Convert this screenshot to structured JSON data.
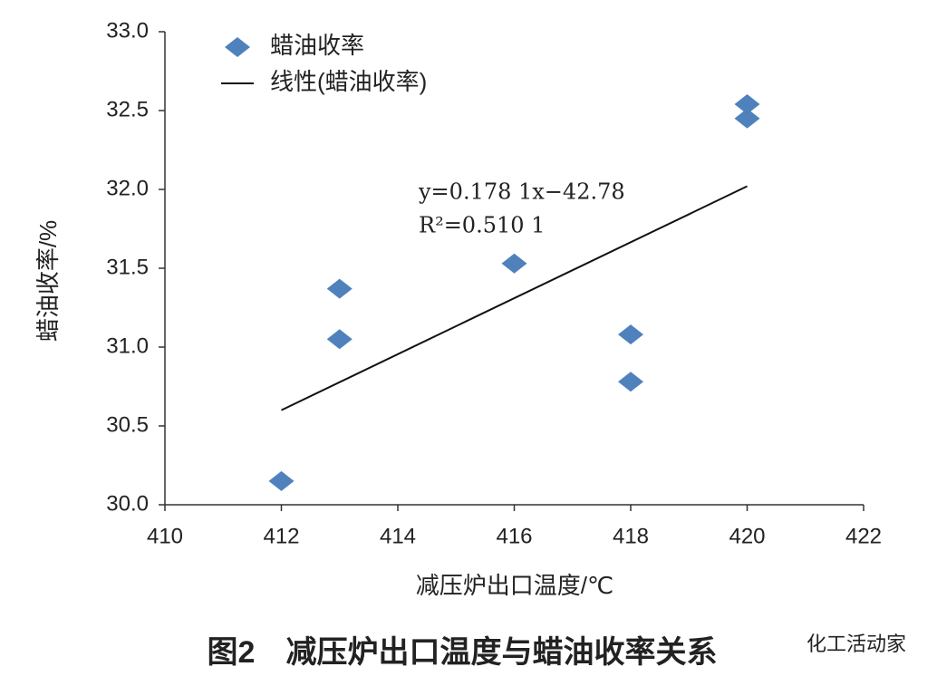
{
  "chart_data": {
    "type": "scatter",
    "caption": "图2　减压炉出口温度与蜡油收率关系",
    "xlabel": "减压炉出口温度/℃",
    "ylabel": "蜡油收率/%",
    "xlim": [
      410,
      422
    ],
    "ylim": [
      30,
      33
    ],
    "xticks": [
      410,
      412,
      414,
      416,
      418,
      420,
      422
    ],
    "yticks": [
      {
        "value": 30,
        "label": "30.0"
      },
      {
        "value": 30.5,
        "label": "30.5"
      },
      {
        "value": 31,
        "label": "31.0"
      },
      {
        "value": 31.5,
        "label": "31.5"
      },
      {
        "value": 32,
        "label": "32.0"
      },
      {
        "value": 32.5,
        "label": "32.5"
      },
      {
        "value": 33,
        "label": "33.0"
      }
    ],
    "grid": false,
    "legend": "upper left",
    "series": [
      {
        "name": "蜡油收率",
        "color": "#4f81bd",
        "x": [
          412,
          413,
          413,
          416,
          418,
          418,
          420,
          420
        ],
        "values": [
          30.15,
          31.37,
          31.05,
          31.53,
          31.08,
          30.78,
          32.54,
          32.45
        ]
      },
      {
        "name": "线性(蜡油收率)",
        "type": "line",
        "color": "#111111",
        "x": [
          412,
          420
        ],
        "values": [
          30.6,
          32.02
        ]
      }
    ],
    "annotations": [
      "y=0.178 1x−42.78",
      "R²=0.510 1"
    ]
  },
  "watermark": "化工活动家"
}
